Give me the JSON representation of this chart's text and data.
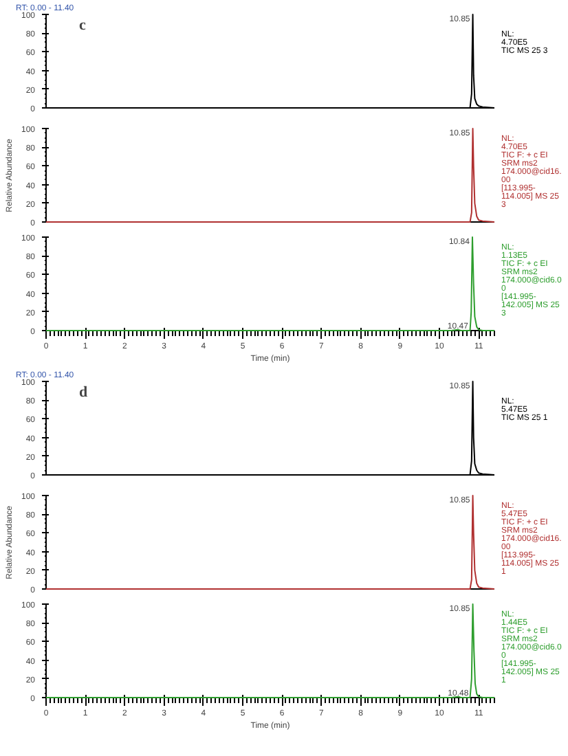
{
  "chart_data": [
    {
      "type": "line",
      "title": "RT: 0.00 - 11.40",
      "subtitle": "c",
      "tick_labels": "y",
      "xlim": [
        0,
        11.4
      ],
      "ylim": [
        0,
        100
      ],
      "yticks": [
        0,
        20,
        40,
        60,
        80,
        100
      ],
      "x": [
        0,
        5,
        10.3,
        10.78,
        10.82,
        10.85,
        10.87,
        10.9,
        10.95,
        11.0,
        11.1,
        11.4
      ],
      "series": [
        {
          "color": "#000000",
          "values": [
            0,
            0,
            0,
            0,
            15,
            100,
            35,
            10,
            4,
            2,
            1,
            0
          ]
        }
      ],
      "annotations": [
        {
          "text": "10.85",
          "x": 10.85,
          "y": 100
        },
        "NL:\n4.70E5\nTIC  MS 25 3"
      ]
    },
    {
      "type": "line",
      "ylabel": "Relative Abundance",
      "tick_labels": "y",
      "xlim": [
        0,
        11.4
      ],
      "ylim": [
        0,
        100
      ],
      "yticks": [
        0,
        20,
        40,
        60,
        80,
        100
      ],
      "x": [
        0,
        5,
        10.3,
        10.78,
        10.82,
        10.85,
        10.87,
        10.9,
        10.95,
        11.0,
        11.1,
        11.4
      ],
      "series": [
        {
          "color": "#b03030",
          "values": [
            0,
            0,
            0,
            0,
            10,
            100,
            60,
            20,
            6,
            2,
            1,
            0
          ]
        }
      ],
      "annotations": [
        {
          "text": "10.85",
          "x": 10.85,
          "y": 100
        },
        "NL:\n4.70E5\nTIC F: + c EI\nSRM ms2\n174.000@cid16.\n00\n[113.995-\n114.005]  MS 25\n3"
      ]
    },
    {
      "type": "line",
      "xlabel": "Time (min)",
      "xlim": [
        0,
        11.4
      ],
      "ylim": [
        0,
        100
      ],
      "xticks": [
        0,
        1,
        2,
        3,
        4,
        5,
        6,
        7,
        8,
        9,
        10,
        11
      ],
      "yticks": [
        0,
        20,
        40,
        60,
        80,
        100
      ],
      "x": [
        0,
        5,
        10.3,
        10.47,
        10.55,
        10.78,
        10.81,
        10.84,
        10.87,
        10.9,
        10.95,
        11.0,
        11.1,
        11.4
      ],
      "series": [
        {
          "color": "#2e9e2e",
          "values": [
            0,
            0,
            0,
            1,
            0,
            0,
            20,
            100,
            50,
            15,
            4,
            1,
            0,
            0
          ]
        }
      ],
      "annotations": [
        {
          "text": "10.84",
          "x": 10.84,
          "y": 100
        },
        {
          "text": "10.47",
          "x": 10.47,
          "y": 1
        },
        "NL:\n1.13E5\nTIC F: + c EI\nSRM ms2\n174.000@cid6.0\n0\n[141.995-\n142.005]  MS 25\n3"
      ]
    },
    {
      "type": "line",
      "title": "RT: 0.00 - 11.40",
      "subtitle": "d",
      "tick_labels": "y",
      "xlim": [
        0,
        11.4
      ],
      "ylim": [
        0,
        100
      ],
      "yticks": [
        0,
        20,
        40,
        60,
        80,
        100
      ],
      "x": [
        0,
        5,
        10.3,
        10.78,
        10.82,
        10.85,
        10.87,
        10.9,
        10.95,
        11.0,
        11.1,
        11.4
      ],
      "series": [
        {
          "color": "#000000",
          "values": [
            0,
            0,
            0,
            0,
            15,
            100,
            40,
            12,
            5,
            2,
            1,
            0
          ]
        }
      ],
      "annotations": [
        {
          "text": "10.85",
          "x": 10.85,
          "y": 100
        },
        "NL:\n5.47E5\nTIC  MS 25 1"
      ]
    },
    {
      "type": "line",
      "ylabel": "Relative Abundance",
      "tick_labels": "y",
      "xlim": [
        0,
        11.4
      ],
      "ylim": [
        0,
        100
      ],
      "yticks": [
        0,
        20,
        40,
        60,
        80,
        100
      ],
      "x": [
        0,
        5,
        10.3,
        10.78,
        10.82,
        10.85,
        10.87,
        10.9,
        10.95,
        11.0,
        11.1,
        11.4
      ],
      "series": [
        {
          "color": "#b03030",
          "values": [
            0,
            0,
            0,
            0,
            10,
            100,
            60,
            20,
            6,
            2,
            1,
            0
          ]
        }
      ],
      "annotations": [
        {
          "text": "10.85",
          "x": 10.85,
          "y": 100
        },
        "NL:\n5.47E5\nTIC F: + c EI\nSRM ms2\n174.000@cid16.\n00\n[113.995-\n114.005]  MS 25\n1"
      ]
    },
    {
      "type": "line",
      "xlabel": "Time (min)",
      "xlim": [
        0,
        11.4
      ],
      "ylim": [
        0,
        100
      ],
      "xticks": [
        0,
        1,
        2,
        3,
        4,
        5,
        6,
        7,
        8,
        9,
        10,
        11
      ],
      "yticks": [
        0,
        20,
        40,
        60,
        80,
        100
      ],
      "x": [
        0,
        5,
        10.3,
        10.48,
        10.55,
        10.78,
        10.82,
        10.85,
        10.88,
        10.91,
        10.95,
        11.0,
        11.1,
        11.4
      ],
      "series": [
        {
          "color": "#2e9e2e",
          "values": [
            0,
            0,
            0,
            1,
            0,
            0,
            20,
            100,
            50,
            15,
            4,
            1,
            0,
            0
          ]
        }
      ],
      "annotations": [
        {
          "text": "10.85",
          "x": 10.85,
          "y": 100
        },
        {
          "text": "10.48",
          "x": 10.48,
          "y": 1
        },
        "NL:\n1.44E5\nTIC F: + c EI\nSRM ms2\n174.000@cid6.0\n0\n[141.995-\n142.005]  MS 25\n1"
      ]
    }
  ]
}
